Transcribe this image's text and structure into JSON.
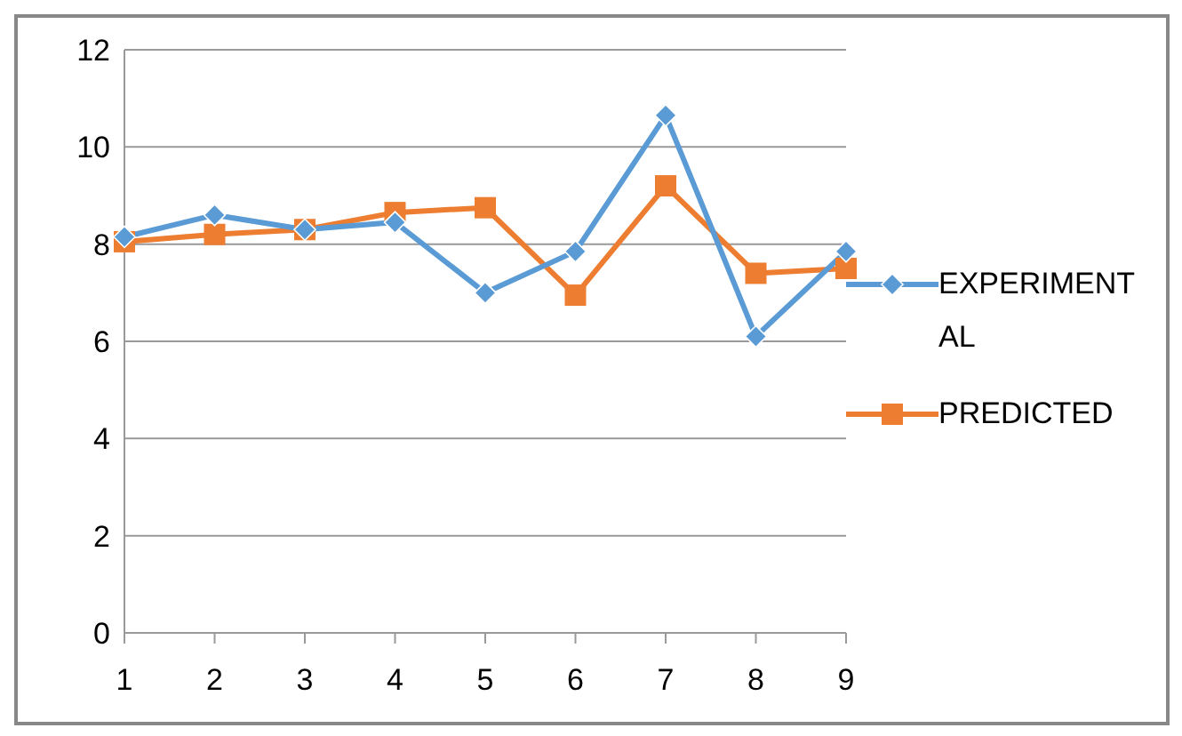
{
  "chart_data": {
    "type": "line",
    "categories": [
      "1",
      "2",
      "3",
      "4",
      "5",
      "6",
      "7",
      "8",
      "9"
    ],
    "series": [
      {
        "name": "EXPERIMENTAL",
        "color": "#5b9bd5",
        "marker": "diamond",
        "values": [
          8.15,
          8.6,
          8.3,
          8.45,
          7.0,
          7.85,
          10.65,
          6.1,
          7.85
        ]
      },
      {
        "name": "PREDICTED",
        "color": "#ed7d31",
        "marker": "square",
        "values": [
          8.05,
          8.2,
          8.3,
          8.65,
          8.75,
          6.95,
          9.2,
          7.4,
          7.5
        ]
      }
    ],
    "ylim": [
      0,
      12
    ],
    "yticks": [
      0,
      2,
      4,
      6,
      8,
      10,
      12
    ],
    "grid": "y",
    "legend": "right"
  }
}
